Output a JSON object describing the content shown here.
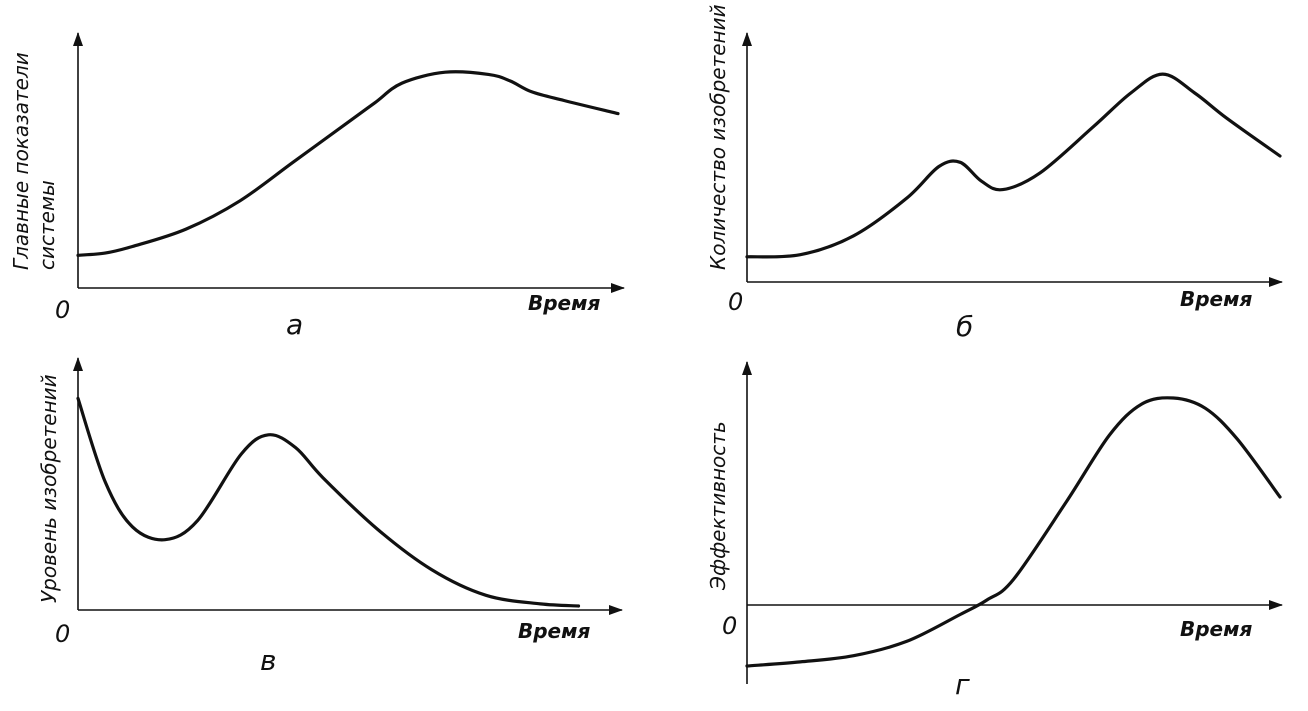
{
  "chart_data": [
    {
      "panel": "а",
      "type": "line",
      "ylabel_lines": [
        "Главные показатели",
        "системы"
      ],
      "xlabel": "Время",
      "origin_label": "0",
      "x": [
        0,
        5,
        10,
        20,
        30,
        40,
        50,
        55,
        60,
        68,
        76,
        80,
        84,
        90,
        100
      ],
      "y": [
        0.15,
        0.16,
        0.19,
        0.27,
        0.4,
        0.58,
        0.76,
        0.85,
        0.94,
        0.99,
        0.98,
        0.95,
        0.9,
        0.86,
        0.8
      ],
      "xlim": [
        0,
        100
      ],
      "ylim": [
        0,
        1
      ]
    },
    {
      "panel": "б",
      "type": "line",
      "ylabel_lines": [
        "Количество изобретений"
      ],
      "xlabel": "Время",
      "origin_label": "0",
      "x": [
        0,
        10,
        20,
        30,
        36,
        40,
        44,
        48,
        55,
        65,
        72,
        78,
        84,
        90,
        100
      ],
      "y": [
        0.12,
        0.13,
        0.22,
        0.4,
        0.55,
        0.57,
        0.48,
        0.44,
        0.52,
        0.74,
        0.9,
        0.99,
        0.9,
        0.78,
        0.6
      ],
      "xlim": [
        0,
        100
      ],
      "ylim": [
        0,
        1
      ]
    },
    {
      "panel": "в",
      "type": "line",
      "ylabel_lines": [
        "Уровень изобретений"
      ],
      "xlabel": "Время",
      "origin_label": "0",
      "x": [
        0,
        5,
        10,
        16,
        22,
        30,
        35,
        40,
        45,
        55,
        65,
        75,
        85,
        92
      ],
      "y": [
        0.97,
        0.58,
        0.37,
        0.31,
        0.4,
        0.71,
        0.8,
        0.74,
        0.6,
        0.36,
        0.17,
        0.05,
        0.01,
        0.0
      ],
      "xlim": [
        0,
        100
      ],
      "ylim": [
        0,
        1
      ]
    },
    {
      "panel": "г",
      "type": "line",
      "ylabel_lines": [
        "Эффективность"
      ],
      "xlabel": "Время",
      "origin_label": "0",
      "x": [
        0,
        10,
        20,
        30,
        40,
        45,
        50,
        60,
        68,
        74,
        80,
        86,
        92,
        100
      ],
      "y": [
        -0.3,
        -0.28,
        -0.25,
        -0.18,
        -0.05,
        0.02,
        0.12,
        0.5,
        0.82,
        0.97,
        1.0,
        0.95,
        0.8,
        0.52
      ],
      "xlim": [
        0,
        100
      ],
      "ylim": [
        -0.3,
        1
      ]
    }
  ]
}
